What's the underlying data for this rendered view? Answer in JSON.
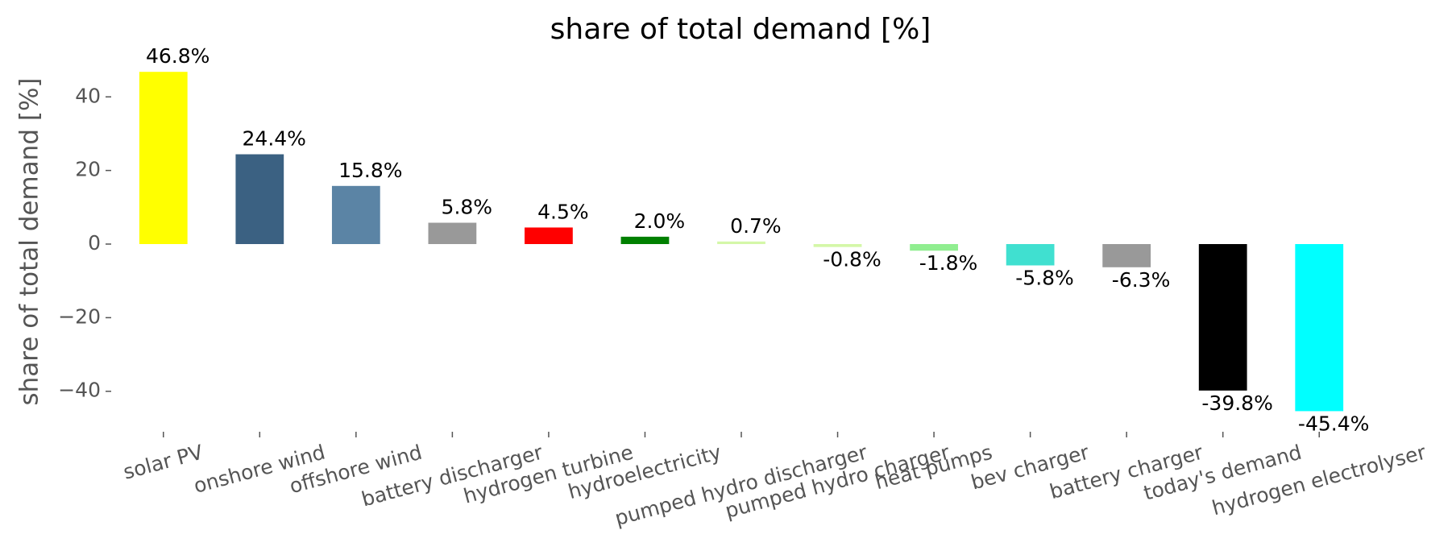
{
  "chart_data": {
    "type": "bar",
    "title": "share of total demand [%]",
    "y_label": "share of total demand [%]",
    "categories": [
      "solar PV",
      "onshore wind",
      "offshore wind",
      "battery discharger",
      "hydrogen turbine",
      "hydroelectricity",
      "pumped hydro discharger",
      "pumped hydro charger",
      "heat pumps",
      "bev charger",
      "battery charger",
      "today's demand",
      "hydrogen electrolyser"
    ],
    "values": [
      46.8,
      24.4,
      15.8,
      5.8,
      4.5,
      2.0,
      0.7,
      -0.8,
      -1.8,
      -5.8,
      -6.3,
      -39.8,
      -45.4
    ],
    "value_labels": [
      "46.8%",
      "24.4%",
      "15.8%",
      "5.8%",
      "4.5%",
      "2.0%",
      "0.7%",
      "-0.8%",
      "-1.8%",
      "-5.8%",
      "-6.3%",
      "-39.8%",
      "-45.4%"
    ],
    "colors": [
      "#ffff00",
      "#3b6182",
      "#5b84a5",
      "#999999",
      "#ff0000",
      "#008000",
      "#d4f7a8",
      "#d4f7a8",
      "#90ee90",
      "#40e0d0",
      "#999999",
      "#000000",
      "#00ffff"
    ],
    "ylim": [
      -51,
      51
    ],
    "yticks": [
      {
        "value": -40,
        "label": "−40"
      },
      {
        "value": -20,
        "label": "−20"
      },
      0,
      20,
      40
    ],
    "grid": false
  }
}
